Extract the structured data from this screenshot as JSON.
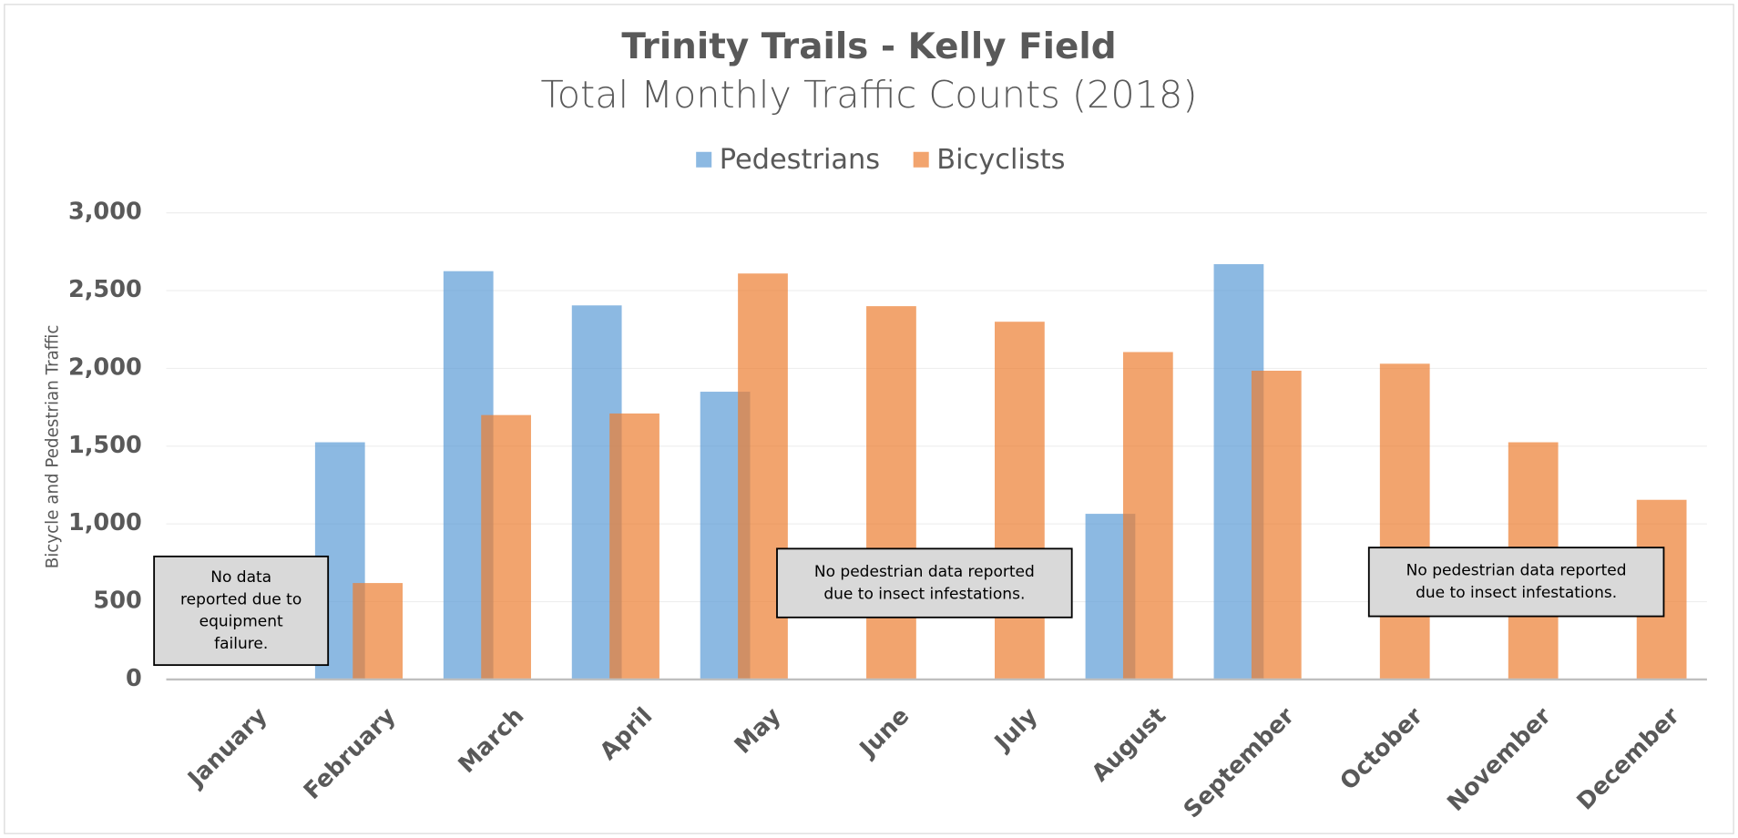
{
  "chart_data": {
    "type": "bar",
    "title": "Trinity Trails - Kelly Field",
    "subtitle": "Total Monthly Traffic Counts (2018)",
    "y_label": "Bicycle and Pedestrian Traffic",
    "categories": [
      "January",
      "February",
      "March",
      "April",
      "May",
      "June",
      "July",
      "August",
      "September",
      "October",
      "November",
      "December"
    ],
    "series": [
      {
        "name": "Pedestrians",
        "color": "#5b9bd5",
        "values": [
          null,
          1525,
          2625,
          2405,
          1850,
          null,
          null,
          1065,
          2670,
          null,
          null,
          null
        ]
      },
      {
        "name": "Bicyclists",
        "color": "#ed7d31",
        "values": [
          null,
          620,
          1700,
          1710,
          2610,
          2400,
          2300,
          2105,
          1985,
          2030,
          1525,
          1155
        ]
      }
    ],
    "ylim": [
      0,
      3000
    ],
    "yticks": [
      0,
      500,
      {
        "value": 1000,
        "label": "1,000"
      },
      {
        "value": 1500,
        "label": "1,500"
      },
      {
        "value": 2000,
        "label": "2,000"
      },
      {
        "value": 2500,
        "label": "2,500"
      },
      {
        "value": 3000,
        "label": "3,000"
      }
    ],
    "grid": true,
    "legend": "top",
    "annotations": [
      [
        "No data",
        "reported due to",
        "equipment",
        "failure."
      ],
      [
        "No pedestrian data reported",
        "due to insect infestations."
      ],
      [
        "No pedestrian data reported",
        "due to insect infestations."
      ]
    ]
  }
}
